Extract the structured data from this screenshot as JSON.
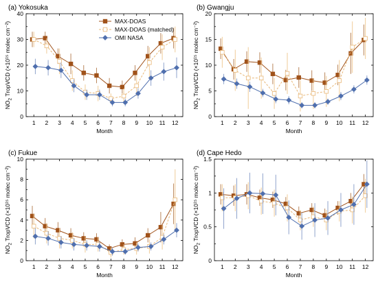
{
  "colors": {
    "maxdoas": "#a0521a",
    "matched": "#e8b777",
    "omi": "#4f6fae",
    "omi_err": "#8fa3cc",
    "maxdoas_err": "#b9855a",
    "matched_err": "#f0cc98"
  },
  "legend": {
    "maxdoas": "MAX-DOAS",
    "matched": "MAX-DOAS (matched)",
    "omi": "OMI NASA"
  },
  "chart_data": [
    {
      "type": "line",
      "title": "(a) Yokosuka",
      "xlabel": "Month",
      "ylabel": "TropVCD (×10¹⁵ molec cm⁻²)",
      "ylabel_prefix": "NO",
      "ylabel_sub": "2",
      "categories": [
        "1",
        "2",
        "3",
        "4",
        "5",
        "6",
        "7",
        "8",
        "9",
        "10",
        "11",
        "12"
      ],
      "ylim": [
        0,
        40
      ],
      "yticks": [
        "0",
        "10",
        "20",
        "30",
        "40"
      ],
      "legend_position": "top-right",
      "series": [
        {
          "name": "MAX-DOAS",
          "values": [
            30,
            30.5,
            23.5,
            20.5,
            17,
            16,
            12,
            11.5,
            17,
            23.5,
            28.5,
            30.5
          ],
          "err": [
            3,
            2.5,
            3,
            4,
            3,
            3,
            3,
            2.5,
            3,
            4,
            4,
            4
          ]
        },
        {
          "name": "MAX-DOAS (matched)",
          "values": [
            30,
            27.5,
            21.5,
            14,
            9.5,
            9,
            7,
            8,
            12,
            21,
            27,
            30
          ],
          "err": [
            3,
            3,
            5,
            4,
            3,
            3,
            2,
            3,
            4,
            6,
            5,
            5
          ]
        },
        {
          "name": "OMI NASA",
          "values": [
            19.5,
            19,
            18,
            12,
            8.5,
            8.5,
            5.5,
            5.5,
            9,
            15,
            17.5,
            19
          ],
          "err": [
            3,
            3,
            3,
            2.5,
            2,
            2,
            1.5,
            1.5,
            2,
            3,
            3.5,
            4
          ]
        }
      ]
    },
    {
      "type": "line",
      "title": "(b) Gwangju",
      "xlabel": "Month",
      "ylabel": "TropVCD (×10¹⁵ molec cm⁻²)",
      "ylabel_prefix": "NO",
      "ylabel_sub": "2",
      "categories": [
        "1",
        "2",
        "3",
        "4",
        "5",
        "6",
        "7",
        "8",
        "9",
        "10",
        "11",
        "12"
      ],
      "ylim": [
        0,
        20
      ],
      "yticks": [
        "0",
        "5",
        "10",
        "15",
        "20"
      ],
      "legend_position": "none",
      "series": [
        {
          "name": "MAX-DOAS",
          "values": [
            13.2,
            9.2,
            10.7,
            10.5,
            8.3,
            7.1,
            7.6,
            7,
            6.6,
            8.1,
            12.3,
            14.9
          ],
          "err": [
            2,
            2,
            2,
            2,
            2,
            2,
            2,
            2,
            2,
            2,
            4,
            3
          ]
        },
        {
          "name": "MAX-DOAS (matched)",
          "values": [
            12.5,
            9,
            7.5,
            7.5,
            4.5,
            8.4,
            4,
            4.5,
            4.9,
            7,
            13.5,
            15.2
          ],
          "err": [
            3,
            4,
            6,
            4,
            3,
            4,
            3,
            3,
            3,
            4,
            5,
            4
          ]
        },
        {
          "name": "OMI NASA",
          "values": [
            7.3,
            6.4,
            5.8,
            4.6,
            3.4,
            3.2,
            2.2,
            2.2,
            2.9,
            4,
            5.3,
            7.1
          ],
          "err": [
            1,
            1,
            1,
            0.8,
            0.8,
            0.8,
            0.6,
            0.6,
            0.6,
            0.8,
            0.8,
            0.9
          ]
        }
      ]
    },
    {
      "type": "line",
      "title": "(c) Fukue",
      "xlabel": "Month",
      "ylabel": "TropVCD (×10¹⁵ molec cm⁻²)",
      "ylabel_prefix": "NO",
      "ylabel_sub": "2",
      "categories": [
        "1",
        "2",
        "3",
        "4",
        "5",
        "6",
        "7",
        "8",
        "9",
        "10",
        "11",
        "12"
      ],
      "ylim": [
        0,
        10
      ],
      "yticks": [
        "0",
        "2",
        "4",
        "6",
        "8",
        "10"
      ],
      "legend_position": "none",
      "series": [
        {
          "name": "MAX-DOAS",
          "values": [
            4.4,
            3.4,
            3,
            2.5,
            2.2,
            2.1,
            1.2,
            1.6,
            1.7,
            2.5,
            3.3,
            5.6
          ],
          "err": [
            1,
            0.8,
            0.8,
            0.7,
            0.6,
            0.6,
            0.4,
            0.5,
            0.6,
            0.7,
            1.5,
            2
          ]
        },
        {
          "name": "MAX-DOAS (matched)",
          "values": [
            3.4,
            2.7,
            2.2,
            2,
            1.6,
            1.6,
            0.8,
            1.1,
            1.2,
            1.4,
            2.3,
            6
          ],
          "err": [
            1.2,
            1,
            1,
            0.8,
            0.8,
            0.7,
            0.5,
            0.5,
            0.6,
            0.7,
            1.2,
            3
          ]
        },
        {
          "name": "OMI NASA",
          "values": [
            2.4,
            2.2,
            1.8,
            1.6,
            1.5,
            1.4,
            0.9,
            0.9,
            1.3,
            1.4,
            2.1,
            3
          ],
          "err": [
            0.8,
            0.7,
            0.6,
            0.6,
            0.5,
            0.5,
            0.4,
            0.3,
            0.4,
            0.4,
            0.5,
            0.7
          ]
        }
      ]
    },
    {
      "type": "line",
      "title": "(d) Cape Hedo",
      "xlabel": "Month",
      "ylabel": "TropVCD (×10¹⁵ molec cm⁻²)",
      "ylabel_prefix": "NO",
      "ylabel_sub": "2",
      "categories": [
        "1",
        "2",
        "3",
        "4",
        "5",
        "6",
        "7",
        "8",
        "9",
        "10",
        "11",
        "12"
      ],
      "ylim": [
        0,
        1.5
      ],
      "yticks": [
        "0",
        "0.5",
        "1",
        "1.5"
      ],
      "legend_position": "none",
      "series": [
        {
          "name": "MAX-DOAS",
          "values": [
            0.98,
            0.96,
            0.98,
            0.93,
            0.9,
            0.84,
            0.7,
            0.75,
            0.67,
            0.78,
            0.88,
            1.13
          ],
          "err": [
            0.15,
            0.15,
            0.15,
            0.12,
            0.12,
            0.1,
            0.1,
            0.1,
            0.1,
            0.1,
            0.12,
            0.15
          ]
        },
        {
          "name": "MAX-DOAS (matched)",
          "values": [
            0.93,
            0.93,
            0.96,
            0.88,
            0.85,
            0.78,
            0.6,
            0.65,
            0.6,
            0.73,
            0.75,
            0.96
          ],
          "err": [
            0.2,
            0.2,
            0.2,
            0.2,
            0.2,
            0.2,
            0.15,
            0.15,
            0.15,
            0.15,
            0.2,
            0.25
          ]
        },
        {
          "name": "OMI NASA",
          "values": [
            0.77,
            0.92,
            1,
            0.99,
            0.97,
            0.64,
            0.51,
            0.6,
            0.63,
            0.75,
            0.83,
            1.13
          ],
          "err": [
            0.3,
            0.3,
            0.3,
            0.3,
            0.3,
            0.25,
            0.2,
            0.25,
            0.25,
            0.25,
            0.3,
            0.35
          ]
        }
      ]
    }
  ]
}
